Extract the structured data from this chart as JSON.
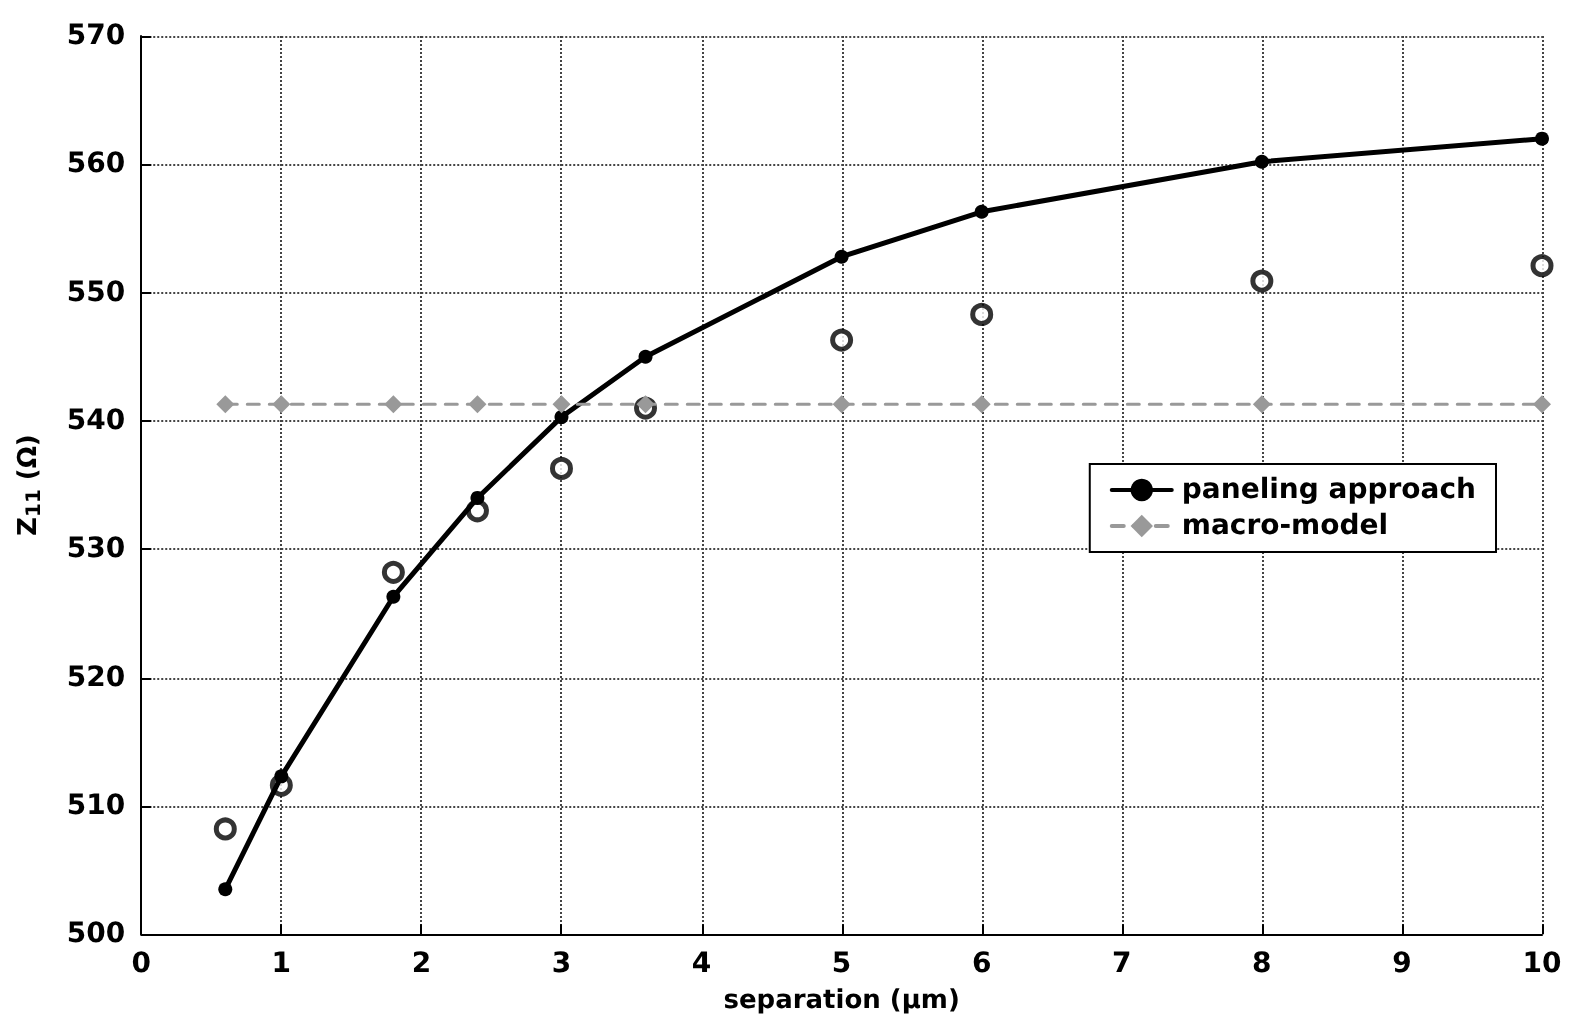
{
  "chart_data": {
    "type": "line",
    "xlabel": "separation (μm)",
    "ylabel": "Z$_{11}$ (Ω)",
    "x": [
      0.6,
      1,
      1.8,
      2.4,
      3,
      3.6,
      5,
      6,
      8,
      10
    ],
    "series": [
      {
        "type": "scatter",
        "color": "#000000",
        "marker": "circle",
        "values": [
          508.2,
          511.6,
          528.2,
          533,
          536.3,
          541,
          546.3,
          548.3,
          550.9,
          552.1
        ]
      },
      {
        "name": "paneling approach",
        "color": "#000000",
        "marker": "circle",
        "line_style": "solid",
        "values": [
          503.5,
          512.3,
          526.3,
          534,
          540.3,
          545,
          552.8,
          556.3,
          560.2,
          562
        ]
      },
      {
        "name": "macro-model",
        "color": "#999999",
        "marker": "diamond",
        "line_style": "dashed",
        "values": [
          541.3,
          541.3,
          541.3,
          541.3,
          541.3,
          541.3,
          541.3,
          541.3,
          541.3,
          541.3
        ]
      }
    ],
    "xlim": [
      0,
      10
    ],
    "xticks": [
      0,
      1,
      2,
      3,
      4,
      5,
      6,
      7,
      8,
      9,
      10
    ],
    "ylim": [
      500,
      570
    ],
    "yticks": [
      500,
      510,
      520,
      530,
      540,
      550,
      560,
      570
    ],
    "grid": true,
    "legend": "right"
  }
}
